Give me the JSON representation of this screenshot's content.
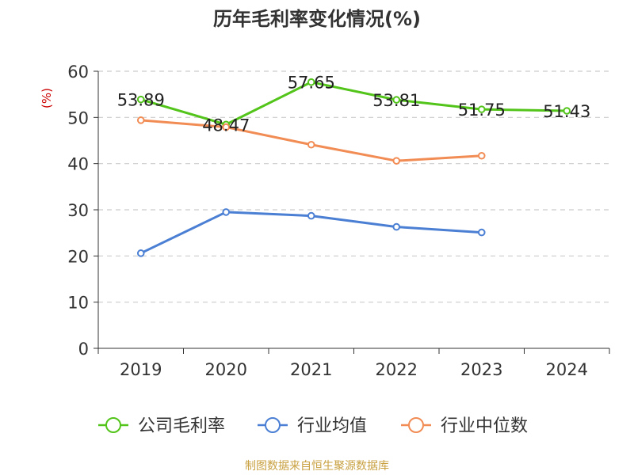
{
  "chart_data": {
    "type": "line",
    "title": "历年毛利率变化情况(%)",
    "ylabel": "(%)",
    "xlabel": "",
    "categories": [
      "2019",
      "2020",
      "2021",
      "2022",
      "2023",
      "2024"
    ],
    "ylim": [
      0,
      60
    ],
    "yticks": [
      0,
      10,
      20,
      30,
      40,
      50,
      60
    ],
    "grid": true,
    "legend_position": "bottom",
    "series": [
      {
        "name": "公司毛利率",
        "color": "#52c41a",
        "values": [
          53.89,
          48.47,
          57.65,
          53.81,
          51.75,
          51.43
        ],
        "labels": [
          "53.89",
          "48.47",
          "57.65",
          "53.81",
          "51.75",
          "51.43"
        ]
      },
      {
        "name": "行业均值",
        "color": "#4a7fd4",
        "values": [
          20.6,
          29.5,
          28.7,
          26.3,
          25.1,
          null
        ]
      },
      {
        "name": "行业中位数",
        "color": "#f28c55",
        "values": [
          49.4,
          47.9,
          44.1,
          40.6,
          41.7,
          null
        ]
      }
    ]
  },
  "source_note": "制图数据来自恒生聚源数据库",
  "colors": {
    "ylabel": "#cc0000",
    "source_note": "#c8a040",
    "grid": "#cccccc",
    "axis": "#333333"
  }
}
